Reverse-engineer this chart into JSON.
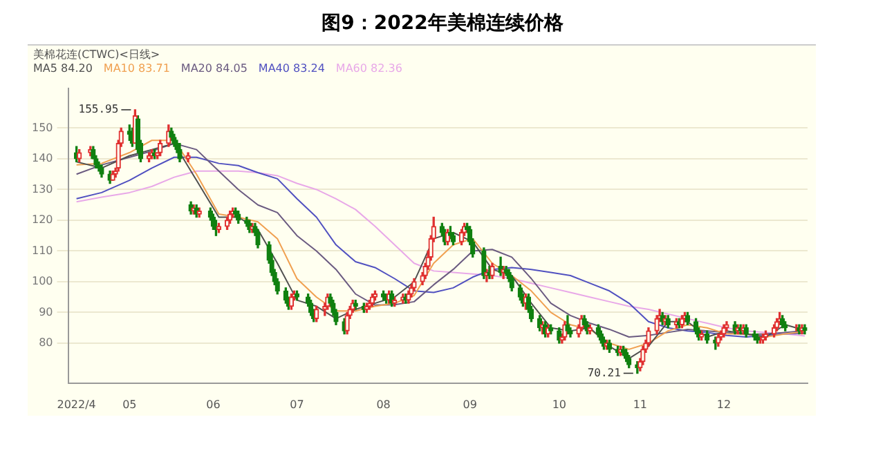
{
  "chart_data": {
    "type": "candlestick",
    "title": "图9：2022年美棉连续价格",
    "subtitle": "美棉花连(CTWC)<日线>",
    "x": [
      "2022-04-13",
      "2022-04-14",
      "2022-04-18",
      "2022-04-19",
      "2022-04-20",
      "2022-04-21",
      "2022-04-22",
      "2022-04-25",
      "2022-04-26",
      "2022-04-27",
      "2022-04-28",
      "2022-04-29",
      "2022-05-02",
      "2022-05-03",
      "2022-05-04",
      "2022-05-05",
      "2022-05-06",
      "2022-05-09",
      "2022-05-10",
      "2022-05-11",
      "2022-05-12",
      "2022-05-13",
      "2022-05-16",
      "2022-05-17",
      "2022-05-18",
      "2022-05-19",
      "2022-05-20",
      "2022-05-23",
      "2022-05-24",
      "2022-05-25",
      "2022-05-26",
      "2022-05-27",
      "2022-05-31",
      "2022-06-01",
      "2022-06-02",
      "2022-06-03",
      "2022-06-06",
      "2022-06-07",
      "2022-06-08",
      "2022-06-09",
      "2022-06-10",
      "2022-06-13",
      "2022-06-14",
      "2022-06-15",
      "2022-06-16",
      "2022-06-17",
      "2022-06-21",
      "2022-06-22",
      "2022-06-23",
      "2022-06-24",
      "2022-06-27",
      "2022-06-28",
      "2022-06-29",
      "2022-06-30",
      "2022-07-01",
      "2022-07-05",
      "2022-07-06",
      "2022-07-07",
      "2022-07-08",
      "2022-07-11",
      "2022-07-12",
      "2022-07-13",
      "2022-07-14",
      "2022-07-15",
      "2022-07-18",
      "2022-07-19",
      "2022-07-20",
      "2022-07-21",
      "2022-07-22",
      "2022-07-25",
      "2022-07-26",
      "2022-07-27",
      "2022-07-28",
      "2022-07-29",
      "2022-08-01",
      "2022-08-02",
      "2022-08-03",
      "2022-08-04",
      "2022-08-05",
      "2022-08-08",
      "2022-08-09",
      "2022-08-10",
      "2022-08-11",
      "2022-08-12",
      "2022-08-15",
      "2022-08-16",
      "2022-08-17",
      "2022-08-18",
      "2022-08-19",
      "2022-08-22",
      "2022-08-23",
      "2022-08-24",
      "2022-08-25",
      "2022-08-26",
      "2022-08-29",
      "2022-08-30",
      "2022-08-31",
      "2022-09-01",
      "2022-09-02",
      "2022-09-06",
      "2022-09-07",
      "2022-09-08",
      "2022-09-09",
      "2022-09-12",
      "2022-09-13",
      "2022-09-14",
      "2022-09-15",
      "2022-09-16",
      "2022-09-19",
      "2022-09-20",
      "2022-09-21",
      "2022-09-22",
      "2022-09-23",
      "2022-09-26",
      "2022-09-27",
      "2022-09-28",
      "2022-09-29",
      "2022-09-30",
      "2022-10-03",
      "2022-10-04",
      "2022-10-05",
      "2022-10-06",
      "2022-10-07",
      "2022-10-10",
      "2022-10-11",
      "2022-10-12",
      "2022-10-13",
      "2022-10-14",
      "2022-10-17",
      "2022-10-18",
      "2022-10-19",
      "2022-10-20",
      "2022-10-21",
      "2022-10-24",
      "2022-10-25",
      "2022-10-26",
      "2022-10-27",
      "2022-10-28",
      "2022-10-31",
      "2022-11-01",
      "2022-11-02",
      "2022-11-03",
      "2022-11-04",
      "2022-11-07",
      "2022-11-08",
      "2022-11-09",
      "2022-11-10",
      "2022-11-11",
      "2022-11-14",
      "2022-11-15",
      "2022-11-16",
      "2022-11-17",
      "2022-11-18",
      "2022-11-21",
      "2022-11-22",
      "2022-11-23",
      "2022-11-25",
      "2022-11-28",
      "2022-11-29",
      "2022-11-30",
      "2022-12-01",
      "2022-12-02",
      "2022-12-05",
      "2022-12-06",
      "2022-12-07",
      "2022-12-08",
      "2022-12-09",
      "2022-12-12",
      "2022-12-13",
      "2022-12-14",
      "2022-12-15",
      "2022-12-16",
      "2022-12-19",
      "2022-12-20",
      "2022-12-21",
      "2022-12-22",
      "2022-12-23",
      "2022-12-27",
      "2022-12-28",
      "2022-12-29",
      "2022-12-30"
    ],
    "ohlc": [
      [
        142,
        144,
        139,
        140
      ],
      [
        140,
        143,
        139,
        142
      ],
      [
        142,
        144,
        141,
        143
      ],
      [
        143,
        144,
        140,
        140
      ],
      [
        140,
        141,
        137,
        138
      ],
      [
        138,
        139,
        136,
        137
      ],
      [
        137,
        138,
        134,
        135
      ],
      [
        135,
        136,
        132,
        133
      ],
      [
        133,
        136,
        133,
        135
      ],
      [
        135,
        137,
        134,
        136
      ],
      [
        137,
        146,
        136,
        145
      ],
      [
        145,
        150,
        144,
        149
      ],
      [
        149,
        151,
        146,
        148
      ],
      [
        148,
        150,
        144,
        145
      ],
      [
        145,
        155.95,
        145,
        154
      ],
      [
        153,
        154,
        142,
        143
      ],
      [
        145,
        146,
        139,
        140
      ],
      [
        140,
        142,
        139,
        141
      ],
      [
        141,
        143,
        140,
        142
      ],
      [
        142,
        143,
        140,
        141
      ],
      [
        141,
        142,
        140,
        142
      ],
      [
        142,
        146,
        141,
        145
      ],
      [
        145,
        151,
        144,
        149
      ],
      [
        149,
        150,
        146,
        147
      ],
      [
        147,
        148,
        144,
        145
      ],
      [
        145,
        146,
        142,
        143
      ],
      [
        143,
        145,
        139,
        140
      ],
      [
        140,
        142,
        139,
        141
      ],
      [
        125,
        126,
        122,
        123
      ],
      [
        123,
        125,
        122,
        124
      ],
      [
        124,
        125,
        121,
        122
      ],
      [
        122,
        124,
        121,
        123
      ],
      [
        123,
        124,
        120,
        121
      ],
      [
        121,
        122,
        117,
        118
      ],
      [
        118,
        120,
        115,
        117
      ],
      [
        117,
        119,
        116,
        118
      ],
      [
        118,
        121,
        117,
        120
      ],
      [
        120,
        123,
        119,
        122
      ],
      [
        122,
        124,
        121,
        123
      ],
      [
        123,
        124,
        121,
        122
      ],
      [
        122,
        123,
        119,
        120
      ],
      [
        120,
        121,
        118,
        119
      ],
      [
        119,
        120,
        116,
        117
      ],
      [
        117,
        119,
        116,
        118
      ],
      [
        118,
        119,
        115,
        116
      ],
      [
        116,
        117,
        111,
        112
      ],
      [
        112,
        113,
        106,
        107
      ],
      [
        107,
        109,
        102,
        103
      ],
      [
        103,
        104,
        99,
        100
      ],
      [
        100,
        101,
        96,
        97
      ],
      [
        97,
        98,
        93,
        94
      ],
      [
        94,
        95,
        91,
        92
      ],
      [
        92,
        96,
        91,
        95
      ],
      [
        95,
        97,
        94,
        96
      ],
      [
        96,
        97,
        94,
        95
      ],
      [
        95,
        96,
        92,
        93
      ],
      [
        93,
        94,
        89,
        90
      ],
      [
        90,
        91,
        87,
        88
      ],
      [
        88,
        92,
        87,
        91
      ],
      [
        91,
        93,
        89,
        92
      ],
      [
        92,
        96,
        91,
        95
      ],
      [
        95,
        96,
        92,
        93
      ],
      [
        93,
        94,
        89,
        90
      ],
      [
        90,
        91,
        86,
        87
      ],
      [
        87,
        88,
        83,
        84
      ],
      [
        84,
        90,
        83,
        89
      ],
      [
        89,
        92,
        88,
        91
      ],
      [
        91,
        94,
        90,
        93
      ],
      [
        93,
        94,
        91,
        92
      ],
      [
        92,
        93,
        90,
        91
      ],
      [
        91,
        93,
        90,
        92
      ],
      [
        92,
        94,
        91,
        93
      ],
      [
        93,
        96,
        92,
        95
      ],
      [
        95,
        97,
        94,
        96
      ],
      [
        96,
        97,
        94,
        95
      ],
      [
        95,
        96,
        93,
        94
      ],
      [
        94,
        97,
        93,
        96
      ],
      [
        96,
        97,
        92,
        93
      ],
      [
        93,
        95,
        92,
        94
      ],
      [
        94,
        96,
        93,
        95
      ],
      [
        95,
        96,
        93,
        94
      ],
      [
        94,
        97,
        93,
        96
      ],
      [
        96,
        99,
        95,
        98
      ],
      [
        98,
        101,
        97,
        100
      ],
      [
        100,
        103,
        99,
        102
      ],
      [
        102,
        106,
        101,
        105
      ],
      [
        105,
        110,
        104,
        108
      ],
      [
        108,
        115,
        107,
        114
      ],
      [
        114,
        121,
        113,
        118
      ],
      [
        118,
        119,
        115,
        116
      ],
      [
        116,
        117,
        112,
        113
      ],
      [
        113,
        117,
        112,
        116
      ],
      [
        116,
        118,
        114,
        115
      ],
      [
        115,
        116,
        112,
        113
      ],
      [
        113,
        117,
        112,
        116
      ],
      [
        116,
        119,
        115,
        118
      ],
      [
        118,
        119,
        116,
        117
      ],
      [
        117,
        118,
        112,
        113
      ],
      [
        113,
        114,
        108,
        109
      ],
      [
        110,
        111,
        101,
        102
      ],
      [
        102,
        104,
        100,
        103
      ],
      [
        103,
        105,
        101,
        102
      ],
      [
        102,
        106,
        101,
        105
      ],
      [
        105,
        108,
        102,
        103
      ],
      [
        103,
        105,
        101,
        104
      ],
      [
        104,
        105,
        102,
        103
      ],
      [
        103,
        104,
        100,
        101
      ],
      [
        101,
        102,
        97,
        98
      ],
      [
        98,
        99,
        94,
        95
      ],
      [
        95,
        96,
        92,
        93
      ],
      [
        93,
        96,
        91,
        95
      ],
      [
        95,
        96,
        90,
        91
      ],
      [
        91,
        92,
        87,
        88
      ],
      [
        88,
        89,
        84,
        85
      ],
      [
        85,
        87,
        83,
        86
      ],
      [
        86,
        87,
        82,
        83
      ],
      [
        83,
        86,
        82,
        85
      ],
      [
        85,
        86,
        83,
        84
      ],
      [
        84,
        85,
        80,
        81
      ],
      [
        81,
        83,
        80,
        82
      ],
      [
        82,
        87,
        81,
        86
      ],
      [
        86,
        89,
        83,
        84
      ],
      [
        84,
        85,
        82,
        83
      ],
      [
        83,
        86,
        82,
        85
      ],
      [
        85,
        89,
        84,
        88
      ],
      [
        88,
        89,
        85,
        86
      ],
      [
        86,
        87,
        83,
        84
      ],
      [
        84,
        86,
        83,
        85
      ],
      [
        85,
        86,
        82,
        83
      ],
      [
        83,
        84,
        80,
        81
      ],
      [
        81,
        82,
        78,
        79
      ],
      [
        79,
        81,
        78,
        80
      ],
      [
        80,
        81,
        77,
        78
      ],
      [
        78,
        79,
        76,
        77
      ],
      [
        77,
        79,
        76,
        78
      ],
      [
        78,
        79,
        76,
        77
      ],
      [
        77,
        78,
        74,
        75
      ],
      [
        75,
        76,
        72,
        73
      ],
      [
        73,
        74,
        70.21,
        72
      ],
      [
        72,
        75,
        71,
        74
      ],
      [
        74,
        79,
        73,
        78
      ],
      [
        78,
        81,
        77,
        80
      ],
      [
        80,
        85,
        79,
        84
      ],
      [
        84,
        89,
        83,
        88
      ],
      [
        88,
        91,
        87,
        89
      ],
      [
        89,
        90,
        86,
        87
      ],
      [
        87,
        89,
        86,
        88
      ],
      [
        88,
        89,
        85,
        86
      ],
      [
        86,
        88,
        85,
        87
      ],
      [
        87,
        88,
        85,
        86
      ],
      [
        86,
        89,
        85,
        88
      ],
      [
        88,
        90,
        87,
        89
      ],
      [
        89,
        90,
        86,
        87
      ],
      [
        87,
        88,
        83,
        84
      ],
      [
        84,
        85,
        81,
        82
      ],
      [
        82,
        84,
        81,
        83
      ],
      [
        83,
        84,
        80,
        81
      ],
      [
        81,
        82,
        78,
        80
      ],
      [
        80,
        83,
        79,
        82
      ],
      [
        82,
        84,
        81,
        83
      ],
      [
        83,
        86,
        82,
        85
      ],
      [
        85,
        87,
        84,
        86
      ],
      [
        86,
        87,
        83,
        84
      ],
      [
        84,
        86,
        83,
        85
      ],
      [
        85,
        86,
        83,
        84
      ],
      [
        84,
        86,
        83,
        85
      ],
      [
        85,
        86,
        82,
        83
      ],
      [
        83,
        84,
        81,
        82
      ],
      [
        82,
        83,
        80,
        81
      ],
      [
        81,
        82,
        80,
        81
      ],
      [
        81,
        83,
        80,
        82
      ],
      [
        82,
        84,
        81,
        83
      ],
      [
        83,
        86,
        82,
        85
      ],
      [
        85,
        88,
        84,
        87
      ],
      [
        87,
        90,
        86,
        88
      ],
      [
        88,
        89,
        85,
        86
      ],
      [
        86,
        87,
        84,
        85
      ],
      [
        85,
        86,
        84,
        85
      ],
      [
        85,
        86,
        83,
        84
      ],
      [
        84,
        86,
        83,
        85
      ],
      [
        85,
        86,
        83,
        84.2
      ]
    ],
    "series": [
      {
        "type": "line",
        "name": "MA5 84.20",
        "color": "#505050",
        "x": [
          "2022-04-13",
          "2022-04-22",
          "2022-05-02",
          "2022-05-10",
          "2022-05-18",
          "2022-05-26",
          "2022-06-03",
          "2022-06-10",
          "2022-06-17",
          "2022-06-24",
          "2022-07-01",
          "2022-07-08",
          "2022-07-15",
          "2022-07-22",
          "2022-07-29",
          "2022-08-05",
          "2022-08-12",
          "2022-08-19",
          "2022-08-26",
          "2022-09-02",
          "2022-09-09",
          "2022-09-16",
          "2022-09-23",
          "2022-09-30",
          "2022-10-07",
          "2022-10-14",
          "2022-10-21",
          "2022-10-28",
          "2022-11-04",
          "2022-11-11",
          "2022-11-18",
          "2022-11-25",
          "2022-12-02",
          "2022-12-09",
          "2022-12-16",
          "2022-12-23",
          "2022-12-30"
        ],
        "values": [
          139,
          137,
          141,
          143,
          145,
          133,
          121,
          121,
          117,
          106,
          94,
          92,
          88,
          91,
          93,
          95,
          100,
          114,
          116,
          113,
          104,
          102,
          93,
          85,
          84,
          85,
          79,
          75,
          79,
          87,
          87,
          82,
          84,
          83,
          82,
          86,
          84.2
        ]
      },
      {
        "type": "line",
        "name": "MA10 83.71",
        "color": "#f0a050",
        "x": [
          "2022-04-13",
          "2022-04-22",
          "2022-05-02",
          "2022-05-10",
          "2022-05-18",
          "2022-05-26",
          "2022-06-03",
          "2022-06-10",
          "2022-06-17",
          "2022-06-24",
          "2022-07-01",
          "2022-07-08",
          "2022-07-15",
          "2022-07-22",
          "2022-07-29",
          "2022-08-05",
          "2022-08-12",
          "2022-08-19",
          "2022-08-26",
          "2022-09-02",
          "2022-09-09",
          "2022-09-16",
          "2022-09-23",
          "2022-09-30",
          "2022-10-07",
          "2022-10-14",
          "2022-10-21",
          "2022-10-28",
          "2022-11-04",
          "2022-11-11",
          "2022-11-18",
          "2022-11-25",
          "2022-12-02",
          "2022-12-09",
          "2022-12-16",
          "2022-12-23",
          "2022-12-30"
        ],
        "values": [
          138,
          138.5,
          142,
          146,
          146,
          135,
          122,
          121,
          119.5,
          114,
          101,
          95,
          90.5,
          90.5,
          92,
          93,
          95.5,
          106,
          112,
          114,
          106,
          102,
          97,
          90,
          86,
          84.5,
          80,
          78,
          80,
          84,
          86,
          85,
          83,
          83,
          82,
          83,
          83.71
        ]
      },
      {
        "type": "line",
        "name": "MA20 84.05",
        "color": "#6a5a80",
        "x": [
          "2022-04-13",
          "2022-04-22",
          "2022-05-02",
          "2022-05-10",
          "2022-05-18",
          "2022-05-26",
          "2022-06-03",
          "2022-06-10",
          "2022-06-17",
          "2022-06-24",
          "2022-07-01",
          "2022-07-08",
          "2022-07-15",
          "2022-07-22",
          "2022-07-29",
          "2022-08-05",
          "2022-08-12",
          "2022-08-19",
          "2022-08-26",
          "2022-09-02",
          "2022-09-09",
          "2022-09-16",
          "2022-09-23",
          "2022-09-30",
          "2022-10-07",
          "2022-10-14",
          "2022-10-21",
          "2022-10-28",
          "2022-11-04",
          "2022-11-11",
          "2022-11-18",
          "2022-11-25",
          "2022-12-02",
          "2022-12-09",
          "2022-12-16",
          "2022-12-23",
          "2022-12-30"
        ],
        "values": [
          135,
          138,
          140.5,
          142.5,
          145,
          143,
          136,
          130,
          125,
          122.5,
          115,
          110,
          104,
          96,
          92.4,
          92.5,
          93.5,
          99,
          104,
          110,
          110.5,
          108,
          101,
          93,
          89,
          86.5,
          84.5,
          82,
          82.5,
          83.5,
          84.5,
          84,
          83.5,
          82.8,
          83,
          83.5,
          84.05
        ]
      },
      {
        "type": "line",
        "name": "MA40 83.24",
        "color": "#5050c0",
        "x": [
          "2022-04-13",
          "2022-04-22",
          "2022-05-02",
          "2022-05-10",
          "2022-05-18",
          "2022-05-26",
          "2022-06-03",
          "2022-06-10",
          "2022-06-17",
          "2022-06-24",
          "2022-07-01",
          "2022-07-08",
          "2022-07-15",
          "2022-07-22",
          "2022-07-29",
          "2022-08-05",
          "2022-08-12",
          "2022-08-19",
          "2022-08-26",
          "2022-09-02",
          "2022-09-09",
          "2022-09-16",
          "2022-09-23",
          "2022-09-30",
          "2022-10-07",
          "2022-10-14",
          "2022-10-21",
          "2022-10-28",
          "2022-11-04",
          "2022-11-11",
          "2022-11-18",
          "2022-11-25",
          "2022-12-02",
          "2022-12-09",
          "2022-12-16",
          "2022-12-23",
          "2022-12-30"
        ],
        "values": [
          127,
          129,
          133,
          137,
          140.5,
          140.5,
          138.5,
          137.8,
          135.5,
          133.5,
          127,
          121,
          112,
          106.5,
          104.6,
          101,
          97,
          96.5,
          98,
          101.5,
          104,
          104.6,
          104,
          103,
          102,
          99.5,
          97,
          93,
          87,
          85,
          84,
          83.5,
          82.5,
          82,
          82.5,
          83,
          83.24
        ]
      },
      {
        "type": "line",
        "name": "MA60 82.36",
        "color": "#e8a8e8",
        "x": [
          "2022-04-13",
          "2022-04-22",
          "2022-05-02",
          "2022-05-10",
          "2022-05-18",
          "2022-05-26",
          "2022-06-03",
          "2022-06-10",
          "2022-06-17",
          "2022-06-24",
          "2022-07-01",
          "2022-07-08",
          "2022-07-15",
          "2022-07-22",
          "2022-07-29",
          "2022-08-05",
          "2022-08-12",
          "2022-08-19",
          "2022-08-26",
          "2022-09-02",
          "2022-09-09",
          "2022-09-16",
          "2022-09-23",
          "2022-09-30",
          "2022-10-07",
          "2022-10-14",
          "2022-10-21",
          "2022-10-28",
          "2022-11-04",
          "2022-11-11",
          "2022-11-18",
          "2022-11-25",
          "2022-12-02",
          "2022-12-09",
          "2022-12-16",
          "2022-12-23",
          "2022-12-30"
        ],
        "values": [
          126,
          127.5,
          129,
          131,
          134,
          136,
          136,
          136,
          135.5,
          134.5,
          132,
          130,
          127,
          123.5,
          118,
          112,
          106,
          103.5,
          103,
          102.5,
          102,
          101,
          99.5,
          98,
          96.5,
          95,
          93.5,
          92,
          91,
          89.5,
          88,
          86.5,
          85,
          84,
          83.5,
          83,
          82.36
        ]
      }
    ],
    "annotations": [
      {
        "text": "155.95",
        "x": "2022-05-04",
        "y": 155.95
      },
      {
        "text": "70.21",
        "x": "2022-10-31",
        "y": 70.21
      }
    ],
    "xlim": [
      "2022-04-10",
      "2022-12-31"
    ],
    "xticks": [
      {
        "value": "2022-04-13",
        "label": "2022/4"
      },
      {
        "value": "2022-05-02",
        "label": "05"
      },
      {
        "value": "2022-06-01",
        "label": "06"
      },
      {
        "value": "2022-07-01",
        "label": "07"
      },
      {
        "value": "2022-08-01",
        "label": "08"
      },
      {
        "value": "2022-09-01",
        "label": "09"
      },
      {
        "value": "2022-10-03",
        "label": "10"
      },
      {
        "value": "2022-11-01",
        "label": "11"
      },
      {
        "value": "2022-12-01",
        "label": "12"
      }
    ],
    "ylim": [
      67,
      163
    ],
    "yticks": [
      80,
      90,
      100,
      110,
      120,
      130,
      140,
      150
    ],
    "grid": "y",
    "legend": "top left"
  }
}
